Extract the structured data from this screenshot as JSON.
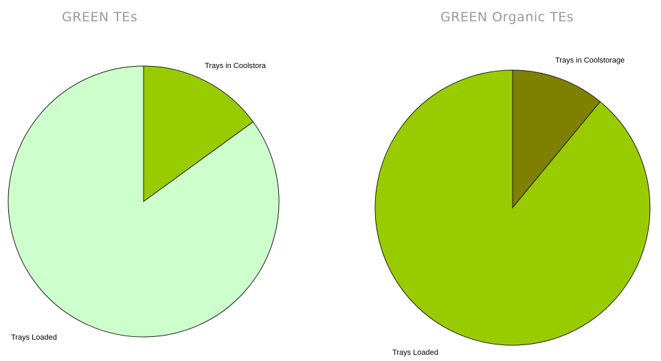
{
  "chart_data": [
    {
      "type": "pie",
      "title": "GREEN TEs",
      "slices": [
        {
          "label": "Trays in Coolstora",
          "value": 15,
          "color": "#99cc00"
        },
        {
          "label": "Trays Loaded",
          "value": 85,
          "color": "#ccffcc"
        }
      ]
    },
    {
      "type": "pie",
      "title": "GREEN Organic TEs",
      "slices": [
        {
          "label": "Trays in Coolstorage",
          "value": 11,
          "color": "#808000"
        },
        {
          "label": "Trays Loaded",
          "value": 89,
          "color": "#99cc00"
        }
      ]
    }
  ]
}
